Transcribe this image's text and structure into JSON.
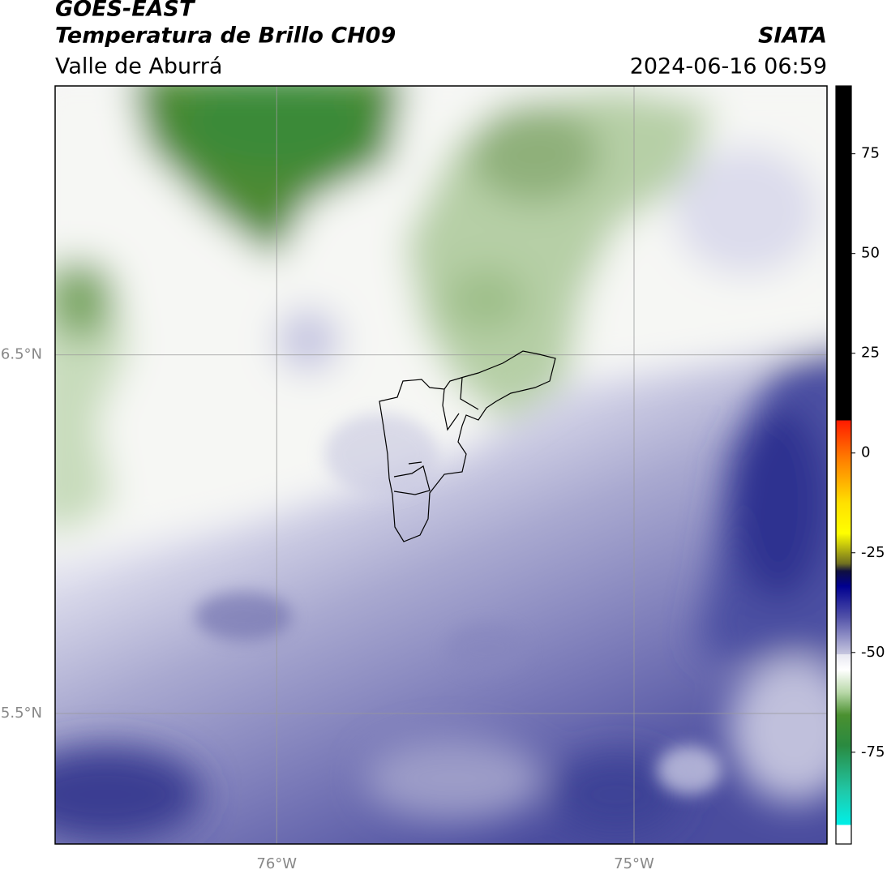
{
  "header": {
    "title": "GOES-EAST",
    "product": "Temperatura de Brillo CH09",
    "region": "Valle de Aburrá",
    "agency": "SIATA",
    "datetime": "2024-06-16 06:59"
  },
  "map": {
    "xlim": [
      -76.62,
      -74.46
    ],
    "ylim": [
      5.136,
      7.25
    ],
    "xticks": [
      {
        "value": -76,
        "label": "76°W"
      },
      {
        "value": -75,
        "label": "75°W"
      }
    ],
    "yticks": [
      {
        "value": 6.5,
        "label": "6.5°N"
      },
      {
        "value": 5.5,
        "label": "5.5°N"
      }
    ]
  },
  "colorbar": {
    "lim": [
      -98,
      92
    ],
    "ticks": [
      75,
      50,
      25,
      0,
      -25,
      -50,
      -75
    ]
  }
}
